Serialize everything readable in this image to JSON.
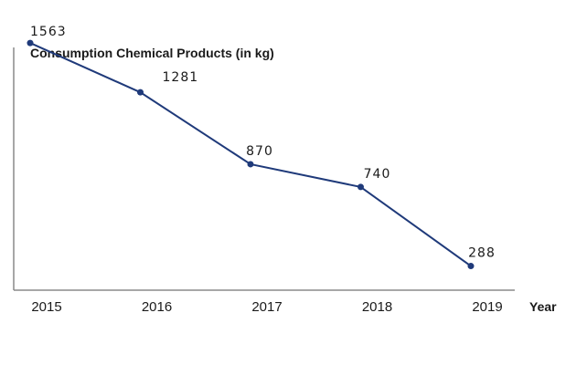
{
  "chart_data": {
    "type": "line",
    "title": "Consumption Chemical Products (in kg)",
    "xlabel": "Year",
    "ylabel": "",
    "categories": [
      "2015",
      "2016",
      "2017",
      "2018",
      "2019"
    ],
    "series": [
      {
        "values": [
          1563,
          1281,
          870,
          740,
          288
        ],
        "labels": [
          "1563",
          "1281",
          "870",
          "740",
          "288"
        ],
        "color": "#1f3a7a"
      }
    ],
    "ylim": [
      150,
      1600
    ],
    "grid": false,
    "legend": "none",
    "axis_color": "#8a8a8a"
  }
}
